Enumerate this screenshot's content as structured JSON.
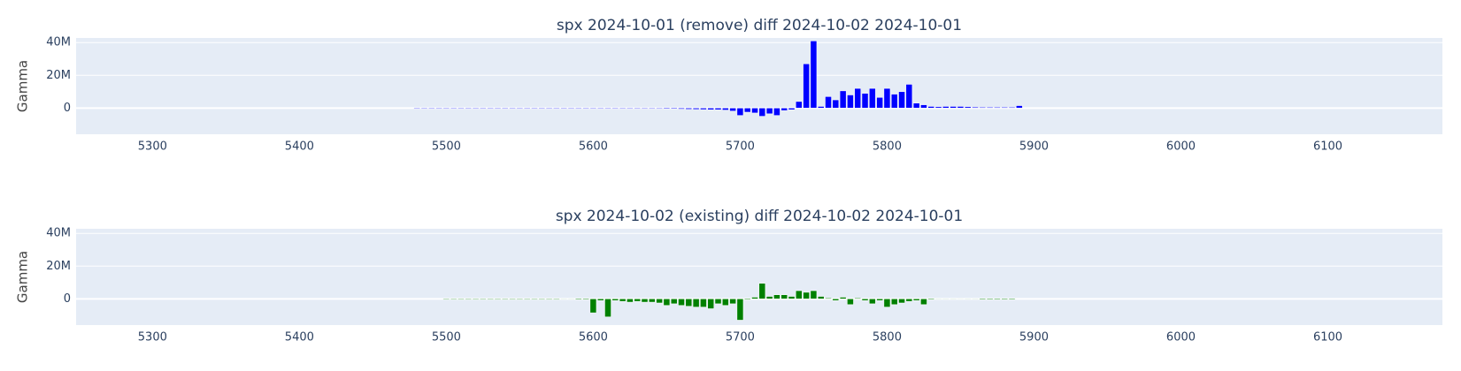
{
  "chart_data": [
    {
      "type": "bar",
      "title": "spx 2024-10-01 (remove) diff 2024-10-02 2024-10-01",
      "y_label": "Gamma",
      "x": [
        5480,
        5485,
        5490,
        5495,
        5500,
        5505,
        5510,
        5515,
        5520,
        5525,
        5530,
        5535,
        5540,
        5545,
        5550,
        5555,
        5560,
        5565,
        5570,
        5575,
        5580,
        5585,
        5590,
        5595,
        5600,
        5605,
        5610,
        5615,
        5620,
        5625,
        5630,
        5635,
        5640,
        5645,
        5650,
        5655,
        5660,
        5665,
        5670,
        5675,
        5680,
        5685,
        5690,
        5695,
        5700,
        5705,
        5710,
        5715,
        5720,
        5725,
        5730,
        5735,
        5740,
        5745,
        5750,
        5755,
        5760,
        5765,
        5770,
        5775,
        5780,
        5785,
        5790,
        5795,
        5800,
        5805,
        5810,
        5815,
        5820,
        5825,
        5830,
        5835,
        5840,
        5845,
        5850,
        5855,
        5860,
        5865,
        5870,
        5875,
        5880,
        5885,
        5890
      ],
      "series": [
        {
          "color": "#0000ff",
          "values": [
            -400000,
            -400000,
            -400000,
            -400000,
            -400000,
            -400000,
            -400000,
            -400000,
            -400000,
            -400000,
            -400000,
            -400000,
            -400000,
            -400000,
            -400000,
            -400000,
            -400000,
            -400000,
            -400000,
            -400000,
            -400000,
            -400000,
            -400000,
            -400000,
            -400000,
            -400000,
            -400000,
            -400000,
            -400000,
            -400000,
            -400000,
            -400000,
            -400000,
            -400000,
            -500000,
            -500000,
            -600000,
            -700000,
            -800000,
            -900000,
            -1000000,
            -1000000,
            -1200000,
            -1800000,
            -4500000,
            -2500000,
            -3000000,
            -5000000,
            -3500000,
            -4500000,
            -1500000,
            -1000000,
            4000000,
            27000000,
            41000000,
            1000000,
            7000000,
            5000000,
            10500000,
            8000000,
            12000000,
            9000000,
            12000000,
            6500000,
            12000000,
            8500000,
            10000000,
            14500000,
            3000000,
            2000000,
            1000000,
            800000,
            1000000,
            1000000,
            1000000,
            800000,
            600000,
            500000,
            500000,
            500000,
            500000,
            500000,
            1500000
          ]
        }
      ],
      "xlim": [
        5248,
        6178
      ],
      "xticks": [
        5300,
        5400,
        5500,
        5600,
        5700,
        5800,
        5900,
        6000,
        6100
      ],
      "ylim": [
        -16000000,
        42800000
      ],
      "yticks": [
        0,
        {
          "value": 20000000,
          "label": "20M"
        },
        {
          "value": 40000000,
          "label": "40M"
        }
      ],
      "grid": true
    },
    {
      "type": "bar",
      "title": "spx 2024-10-02 (existing) diff 2024-10-02 2024-10-01",
      "y_label": "Gamma",
      "x": [
        5500,
        5505,
        5510,
        5515,
        5520,
        5525,
        5530,
        5535,
        5540,
        5545,
        5550,
        5555,
        5560,
        5565,
        5570,
        5575,
        5580,
        5585,
        5590,
        5595,
        5600,
        5605,
        5610,
        5615,
        5620,
        5625,
        5630,
        5635,
        5640,
        5645,
        5650,
        5655,
        5660,
        5665,
        5670,
        5675,
        5680,
        5685,
        5690,
        5695,
        5700,
        5705,
        5710,
        5715,
        5720,
        5725,
        5730,
        5735,
        5740,
        5745,
        5750,
        5755,
        5760,
        5765,
        5770,
        5775,
        5780,
        5785,
        5790,
        5795,
        5800,
        5805,
        5810,
        5815,
        5820,
        5825,
        5830,
        5835,
        5840,
        5845,
        5850,
        5855,
        5860,
        5865,
        5870,
        5875,
        5880,
        5885
      ],
      "series": [
        {
          "color": "#008000",
          "values": [
            -400000,
            -400000,
            -400000,
            -400000,
            -400000,
            -400000,
            -400000,
            -400000,
            -400000,
            -400000,
            -400000,
            -400000,
            -400000,
            -400000,
            -400000,
            -400000,
            -300000,
            -300000,
            -500000,
            -500000,
            -8500000,
            -1000000,
            -11000000,
            -1000000,
            -1500000,
            -2000000,
            -1500000,
            -2000000,
            -2000000,
            -2500000,
            -4000000,
            -3000000,
            -4000000,
            -4500000,
            -5000000,
            -5000000,
            -6000000,
            -3000000,
            -4000000,
            -3000000,
            -13000000,
            -500000,
            1000000,
            9500000,
            1500000,
            2500000,
            2500000,
            1500000,
            5000000,
            4000000,
            5000000,
            1500000,
            500000,
            -1000000,
            1000000,
            -3500000,
            500000,
            -1000000,
            -3000000,
            -1000000,
            -5000000,
            -3500000,
            -2500000,
            -1500000,
            -1000000,
            -3500000,
            -500000,
            -300000,
            -300000,
            -300000,
            300000,
            -300000,
            -300000,
            -500000,
            -500000,
            -500000,
            -500000,
            -500000
          ]
        }
      ],
      "xlim": [
        5248,
        6178
      ],
      "xticks": [
        5300,
        5400,
        5500,
        5600,
        5700,
        5800,
        5900,
        6000,
        6100
      ],
      "ylim": [
        -16000000,
        42800000
      ],
      "yticks": [
        0,
        {
          "value": 20000000,
          "label": "20M"
        },
        {
          "value": 40000000,
          "label": "40M"
        }
      ],
      "grid": true
    }
  ]
}
